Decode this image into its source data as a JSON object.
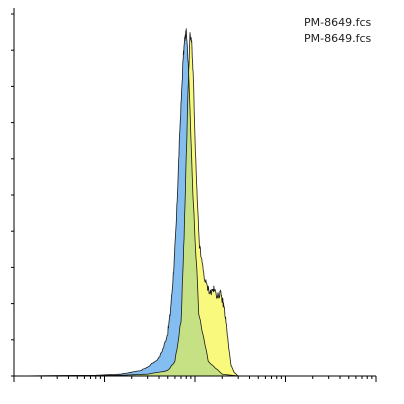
{
  "chart_data": {
    "type": "area",
    "title": "",
    "xlabel": "",
    "ylabel": "",
    "xscale": "log",
    "xlim": [
      1,
      10000
    ],
    "ylim": [
      0,
      100
    ],
    "grid": false,
    "legend_position": "top-right",
    "legend": [
      "PM-8649.fcs",
      "PM-8649.fcs"
    ],
    "colors": {
      "series_1": "#84BDF0",
      "series_2": "#F9F97D",
      "overlap": "#C6E184",
      "outline": "#1a1a1a",
      "axis": "#000000"
    },
    "series": [
      {
        "name": "PM-8649.fcs",
        "color": "#84BDF0",
        "x": [
          1,
          8,
          15,
          25,
          30,
          40,
          45,
          50,
          53,
          56,
          59,
          62,
          65,
          68,
          71,
          74,
          77,
          80,
          85,
          95,
          110,
          140,
          200,
          300
        ],
        "y": [
          0,
          0.2,
          0.5,
          1.5,
          2.5,
          5,
          8,
          12,
          17,
          24,
          32,
          42,
          55,
          68,
          78,
          88,
          93,
          95,
          85,
          50,
          18,
          4,
          0.5,
          0
        ]
      },
      {
        "name": "PM-8649.fcs",
        "color": "#F9F97D",
        "x": [
          1,
          15,
          30,
          50,
          60,
          70,
          75,
          80,
          84,
          88,
          92,
          96,
          100,
          106,
          112,
          120,
          130,
          140,
          150,
          160,
          170,
          180,
          190,
          200,
          210,
          220,
          235,
          250,
          270,
          300,
          400
        ],
        "y": [
          0,
          0.2,
          0.5,
          1.5,
          4,
          15,
          35,
          60,
          80,
          94,
          92,
          82,
          65,
          48,
          36,
          31,
          26,
          24,
          23,
          24,
          23,
          22,
          23,
          21,
          19,
          15,
          8,
          3,
          1,
          0,
          0
        ]
      }
    ]
  }
}
